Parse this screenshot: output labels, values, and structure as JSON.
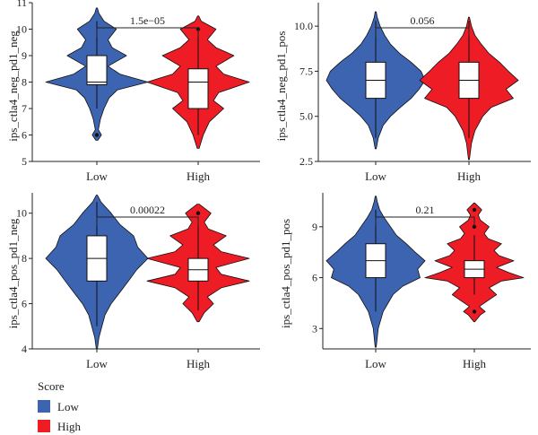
{
  "legend": {
    "title": "Score",
    "items": [
      {
        "label": "Low",
        "color": "#3C64B1"
      },
      {
        "label": "High",
        "color": "#EE1C25"
      }
    ]
  },
  "chart_data": [
    {
      "type": "violin",
      "ylabel": "ips_ctla4_neg_pd1_neg",
      "categories": [
        "Low",
        "High"
      ],
      "ylim": [
        5,
        11
      ],
      "yticks": [
        5,
        6,
        7,
        8,
        9,
        10,
        11
      ],
      "p_value": "1.5e−05",
      "series": [
        {
          "name": "Low",
          "color": "#3C64B1",
          "min": 5.8,
          "max": 10.8,
          "q1": 7.9,
          "median": 8.0,
          "q3": 9.0,
          "whisker_low": 7.0,
          "whisker_high": 10.3,
          "outliers": [
            6.0
          ],
          "density": [
            [
              5.8,
              0.02
            ],
            [
              6.0,
              0.09
            ],
            [
              6.2,
              0.03
            ],
            [
              6.6,
              0.07
            ],
            [
              7.0,
              0.14
            ],
            [
              7.4,
              0.24
            ],
            [
              7.7,
              0.4
            ],
            [
              8.0,
              1.0
            ],
            [
              8.3,
              0.45
            ],
            [
              8.6,
              0.22
            ],
            [
              9.0,
              0.58
            ],
            [
              9.3,
              0.3
            ],
            [
              9.6,
              0.22
            ],
            [
              10.0,
              0.38
            ],
            [
              10.3,
              0.14
            ],
            [
              10.6,
              0.04
            ],
            [
              10.8,
              0.01
            ]
          ]
        },
        {
          "name": "High",
          "color": "#EE1C25",
          "min": 5.5,
          "max": 10.5,
          "q1": 7.0,
          "median": 8.0,
          "q3": 8.5,
          "whisker_low": 6.0,
          "whisker_high": 10.0,
          "outliers": [
            10.0
          ],
          "density": [
            [
              5.5,
              0.02
            ],
            [
              6.0,
              0.1
            ],
            [
              6.5,
              0.22
            ],
            [
              7.0,
              0.5
            ],
            [
              7.3,
              0.3
            ],
            [
              7.6,
              0.4
            ],
            [
              8.0,
              1.0
            ],
            [
              8.3,
              0.5
            ],
            [
              8.6,
              0.35
            ],
            [
              9.0,
              0.7
            ],
            [
              9.3,
              0.35
            ],
            [
              9.6,
              0.18
            ],
            [
              10.0,
              0.35
            ],
            [
              10.3,
              0.06
            ],
            [
              10.5,
              0.01
            ]
          ]
        }
      ]
    },
    {
      "type": "violin",
      "ylabel": "ips_ctla4_neg_pd1_pos",
      "categories": [
        "Low",
        "High"
      ],
      "ylim": [
        2.5,
        11.3
      ],
      "yticks": [
        2.5,
        5.0,
        7.5,
        10.0
      ],
      "yticklabels": [
        "2.5",
        "5.0",
        "7.5",
        "10.0"
      ],
      "p_value": "0.056",
      "series": [
        {
          "name": "Low",
          "color": "#3C64B1",
          "min": 3.2,
          "max": 10.8,
          "q1": 6.0,
          "median": 7.0,
          "q3": 8.0,
          "whisker_low": 3.8,
          "whisker_high": 10.3,
          "outliers": [],
          "density": [
            [
              3.2,
              0.01
            ],
            [
              3.8,
              0.05
            ],
            [
              4.5,
              0.15
            ],
            [
              5.0,
              0.3
            ],
            [
              5.5,
              0.5
            ],
            [
              6.0,
              0.72
            ],
            [
              6.5,
              0.88
            ],
            [
              7.0,
              1.0
            ],
            [
              7.5,
              0.92
            ],
            [
              8.0,
              0.72
            ],
            [
              8.5,
              0.48
            ],
            [
              9.0,
              0.3
            ],
            [
              9.5,
              0.18
            ],
            [
              10.0,
              0.09
            ],
            [
              10.5,
              0.03
            ],
            [
              10.8,
              0.01
            ]
          ]
        },
        {
          "name": "High",
          "color": "#EE1C25",
          "min": 2.6,
          "max": 10.5,
          "q1": 6.0,
          "median": 7.0,
          "q3": 8.0,
          "whisker_low": 3.8,
          "whisker_high": 10.3,
          "outliers": [],
          "density": [
            [
              2.6,
              0.01
            ],
            [
              3.5,
              0.05
            ],
            [
              4.2,
              0.12
            ],
            [
              5.0,
              0.28
            ],
            [
              5.5,
              0.45
            ],
            [
              6.0,
              0.9
            ],
            [
              6.5,
              0.75
            ],
            [
              7.0,
              1.0
            ],
            [
              7.5,
              0.8
            ],
            [
              8.0,
              0.62
            ],
            [
              8.5,
              0.4
            ],
            [
              9.0,
              0.25
            ],
            [
              9.5,
              0.12
            ],
            [
              10.0,
              0.05
            ],
            [
              10.5,
              0.01
            ]
          ]
        }
      ]
    },
    {
      "type": "violin",
      "ylabel": "ips_ctla4_pos_pd1_neg",
      "categories": [
        "Low",
        "High"
      ],
      "ylim": [
        4,
        10.9
      ],
      "yticks": [
        4,
        6,
        8,
        10
      ],
      "p_value": "0.00022",
      "series": [
        {
          "name": "Low",
          "color": "#3C64B1",
          "min": 4.0,
          "max": 10.8,
          "q1": 7.0,
          "median": 8.0,
          "q3": 9.0,
          "whisker_low": 5.0,
          "whisker_high": 10.5,
          "outliers": [],
          "density": [
            [
              4.0,
              0.01
            ],
            [
              4.5,
              0.04
            ],
            [
              5.0,
              0.1
            ],
            [
              5.5,
              0.16
            ],
            [
              6.0,
              0.28
            ],
            [
              6.5,
              0.45
            ],
            [
              7.0,
              0.62
            ],
            [
              7.5,
              0.78
            ],
            [
              8.0,
              1.0
            ],
            [
              8.5,
              0.8
            ],
            [
              9.0,
              0.72
            ],
            [
              9.5,
              0.45
            ],
            [
              10.0,
              0.28
            ],
            [
              10.5,
              0.08
            ],
            [
              10.8,
              0.01
            ]
          ]
        },
        {
          "name": "High",
          "color": "#EE1C25",
          "min": 5.2,
          "max": 10.4,
          "q1": 7.0,
          "median": 7.5,
          "q3": 8.0,
          "whisker_low": 5.7,
          "whisker_high": 9.8,
          "outliers": [
            10.0
          ],
          "density": [
            [
              5.2,
              0.02
            ],
            [
              5.6,
              0.12
            ],
            [
              6.0,
              0.3
            ],
            [
              6.3,
              0.18
            ],
            [
              6.7,
              0.45
            ],
            [
              7.0,
              1.0
            ],
            [
              7.3,
              0.45
            ],
            [
              7.6,
              0.35
            ],
            [
              8.0,
              1.0
            ],
            [
              8.3,
              0.45
            ],
            [
              8.6,
              0.3
            ],
            [
              9.0,
              0.55
            ],
            [
              9.3,
              0.2
            ],
            [
              9.6,
              0.12
            ],
            [
              10.0,
              0.25
            ],
            [
              10.4,
              0.02
            ]
          ]
        }
      ]
    },
    {
      "type": "violin",
      "ylabel": "ips_ctla4_pos_pd1_pos",
      "categories": [
        "Low",
        "High"
      ],
      "ylim": [
        1.8,
        11.0
      ],
      "yticks": [
        3,
        6,
        9
      ],
      "p_value": "0.21",
      "series": [
        {
          "name": "Low",
          "color": "#3C64B1",
          "min": 1.9,
          "max": 10.8,
          "q1": 6.0,
          "median": 7.0,
          "q3": 8.0,
          "whisker_low": 4.0,
          "whisker_high": 10.0,
          "outliers": [],
          "density": [
            [
              1.9,
              0.01
            ],
            [
              3.0,
              0.05
            ],
            [
              4.0,
              0.15
            ],
            [
              5.0,
              0.35
            ],
            [
              5.5,
              0.55
            ],
            [
              6.0,
              0.9
            ],
            [
              6.5,
              0.85
            ],
            [
              7.0,
              1.0
            ],
            [
              7.5,
              0.8
            ],
            [
              8.0,
              0.62
            ],
            [
              8.5,
              0.42
            ],
            [
              9.0,
              0.3
            ],
            [
              9.5,
              0.18
            ],
            [
              10.0,
              0.08
            ],
            [
              10.5,
              0.03
            ],
            [
              10.8,
              0.01
            ]
          ]
        },
        {
          "name": "High",
          "color": "#EE1C25",
          "min": 3.4,
          "max": 10.4,
          "q1": 6.0,
          "median": 6.5,
          "q3": 7.0,
          "whisker_low": 5.0,
          "whisker_high": 8.5,
          "outliers": [
            9.0,
            10.0,
            4.0
          ],
          "density": [
            [
              3.4,
              0.01
            ],
            [
              3.8,
              0.12
            ],
            [
              4.0,
              0.22
            ],
            [
              4.3,
              0.1
            ],
            [
              4.7,
              0.3
            ],
            [
              5.0,
              0.45
            ],
            [
              5.4,
              0.3
            ],
            [
              5.8,
              0.55
            ],
            [
              6.0,
              1.0
            ],
            [
              6.3,
              0.7
            ],
            [
              6.6,
              0.45
            ],
            [
              7.0,
              0.8
            ],
            [
              7.3,
              0.5
            ],
            [
              7.6,
              0.4
            ],
            [
              8.0,
              0.55
            ],
            [
              8.3,
              0.28
            ],
            [
              8.6,
              0.2
            ],
            [
              9.0,
              0.3
            ],
            [
              9.4,
              0.12
            ],
            [
              9.7,
              0.08
            ],
            [
              10.0,
              0.15
            ],
            [
              10.4,
              0.01
            ]
          ]
        }
      ]
    }
  ]
}
